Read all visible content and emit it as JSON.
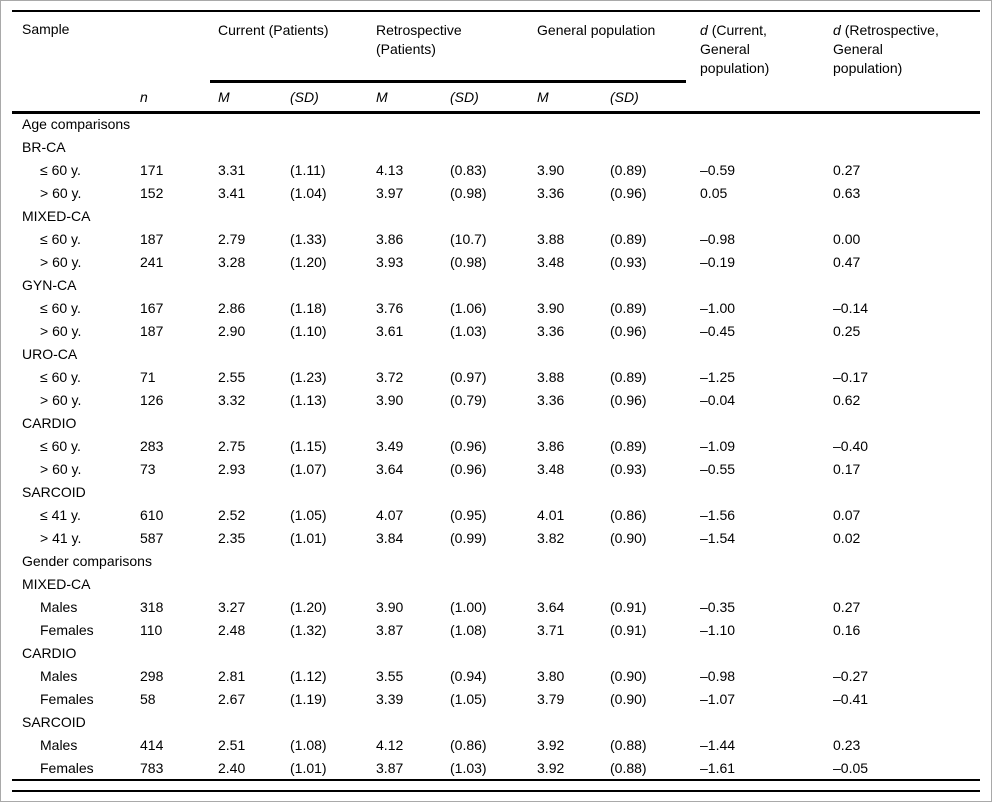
{
  "table": {
    "header": {
      "sample": "Sample",
      "n": "n",
      "m": "M",
      "sd": "(SD)",
      "groups": [
        {
          "label": "Current (Patients)"
        },
        {
          "label": "Retrospective (Patients)"
        },
        {
          "label": "General population"
        }
      ],
      "d_columns": [
        {
          "prefix": "d",
          "rest": " (Current, General population)"
        },
        {
          "prefix": "d",
          "rest": " (Retrospective, General population)"
        }
      ]
    },
    "rows": [
      {
        "label": "Age comparisons",
        "indent": false,
        "values": []
      },
      {
        "label": "BR-CA",
        "indent": false,
        "values": []
      },
      {
        "label": "≤ 60 y.",
        "indent": true,
        "values": [
          "171",
          "3.31",
          "(1.11)",
          "4.13",
          "(0.83)",
          "3.90",
          "(0.89)",
          "–0.59",
          "0.27"
        ]
      },
      {
        "label": "> 60 y.",
        "indent": true,
        "values": [
          "152",
          "3.41",
          "(1.04)",
          "3.97",
          "(0.98)",
          "3.36",
          "(0.96)",
          "0.05",
          "0.63"
        ]
      },
      {
        "label": "MIXED-CA",
        "indent": false,
        "values": []
      },
      {
        "label": "≤ 60 y.",
        "indent": true,
        "values": [
          "187",
          "2.79",
          "(1.33)",
          "3.86",
          "(10.7)",
          "3.88",
          "(0.89)",
          "–0.98",
          "0.00"
        ]
      },
      {
        "label": "> 60 y.",
        "indent": true,
        "values": [
          "241",
          "3.28",
          "(1.20)",
          "3.93",
          "(0.98)",
          "3.48",
          "(0.93)",
          "–0.19",
          "0.47"
        ]
      },
      {
        "label": "GYN-CA",
        "indent": false,
        "values": []
      },
      {
        "label": "≤ 60 y.",
        "indent": true,
        "values": [
          "167",
          "2.86",
          "(1.18)",
          "3.76",
          "(1.06)",
          "3.90",
          "(0.89)",
          "–1.00",
          "–0.14"
        ]
      },
      {
        "label": "> 60 y.",
        "indent": true,
        "values": [
          "187",
          "2.90",
          "(1.10)",
          "3.61",
          "(1.03)",
          "3.36",
          "(0.96)",
          "–0.45",
          "0.25"
        ]
      },
      {
        "label": "URO-CA",
        "indent": false,
        "values": []
      },
      {
        "label": "≤ 60 y.",
        "indent": true,
        "values": [
          "71",
          "2.55",
          "(1.23)",
          "3.72",
          "(0.97)",
          "3.88",
          "(0.89)",
          "–1.25",
          "–0.17"
        ]
      },
      {
        "label": "> 60 y.",
        "indent": true,
        "values": [
          "126",
          "3.32",
          "(1.13)",
          "3.90",
          "(0.79)",
          "3.36",
          "(0.96)",
          "–0.04",
          "0.62"
        ]
      },
      {
        "label": "CARDIO",
        "indent": false,
        "values": []
      },
      {
        "label": "≤ 60 y.",
        "indent": true,
        "values": [
          "283",
          "2.75",
          "(1.15)",
          "3.49",
          "(0.96)",
          "3.86",
          "(0.89)",
          "–1.09",
          "–0.40"
        ]
      },
      {
        "label": "> 60 y.",
        "indent": true,
        "values": [
          "73",
          "2.93",
          "(1.07)",
          "3.64",
          "(0.96)",
          "3.48",
          "(0.93)",
          "–0.55",
          "0.17"
        ]
      },
      {
        "label": "SARCOID",
        "indent": false,
        "values": []
      },
      {
        "label": "≤ 41 y.",
        "indent": true,
        "values": [
          "610",
          "2.52",
          "(1.05)",
          "4.07",
          "(0.95)",
          "4.01",
          "(0.86)",
          "–1.56",
          "0.07"
        ]
      },
      {
        "label": "> 41 y.",
        "indent": true,
        "values": [
          "587",
          "2.35",
          "(1.01)",
          "3.84",
          "(0.99)",
          "3.82",
          "(0.90)",
          "–1.54",
          "0.02"
        ]
      },
      {
        "label": "Gender comparisons",
        "indent": false,
        "values": []
      },
      {
        "label": "MIXED-CA",
        "indent": false,
        "values": []
      },
      {
        "label": "Males",
        "indent": true,
        "values": [
          "318",
          "3.27",
          "(1.20)",
          "3.90",
          "(1.00)",
          "3.64",
          "(0.91)",
          "–0.35",
          "0.27"
        ]
      },
      {
        "label": "Females",
        "indent": true,
        "values": [
          "110",
          "2.48",
          "(1.32)",
          "3.87",
          "(1.08)",
          "3.71",
          "(0.91)",
          "–1.10",
          "0.16"
        ]
      },
      {
        "label": "CARDIO",
        "indent": false,
        "values": []
      },
      {
        "label": "Males",
        "indent": true,
        "values": [
          "298",
          "2.81",
          "(1.12)",
          "3.55",
          "(0.94)",
          "3.80",
          "(0.90)",
          "–0.98",
          "–0.27"
        ]
      },
      {
        "label": "Females",
        "indent": true,
        "values": [
          "58",
          "2.67",
          "(1.19)",
          "3.39",
          "(1.05)",
          "3.79",
          "(0.90)",
          "–1.07",
          "–0.41"
        ]
      },
      {
        "label": "SARCOID",
        "indent": false,
        "values": []
      },
      {
        "label": "Males",
        "indent": true,
        "values": [
          "414",
          "2.51",
          "(1.08)",
          "4.12",
          "(0.86)",
          "3.92",
          "(0.88)",
          "–1.44",
          "0.23"
        ]
      },
      {
        "label": "Females",
        "indent": true,
        "values": [
          "783",
          "2.40",
          "(1.01)",
          "3.87",
          "(1.03)",
          "3.92",
          "(0.88)",
          "–1.61",
          "–0.05"
        ]
      }
    ]
  },
  "colors": {
    "rule": "#000000",
    "frame": "#a9a9a9",
    "text": "#000000"
  }
}
